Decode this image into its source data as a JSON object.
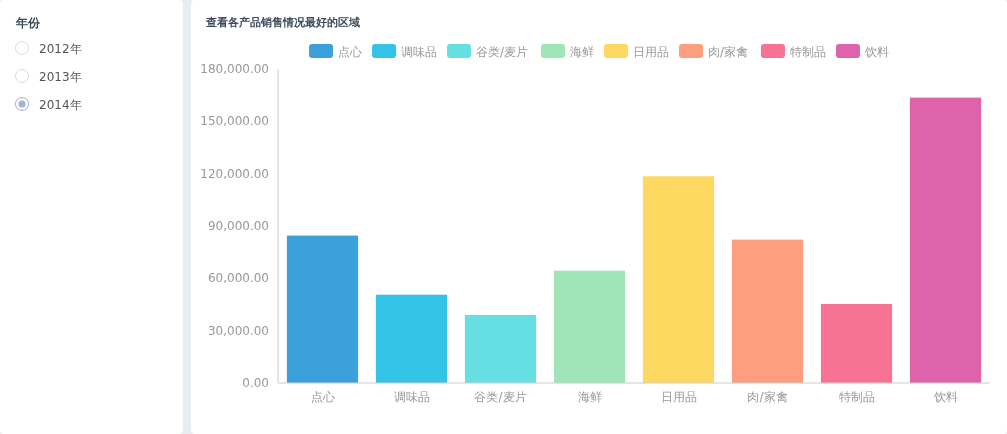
{
  "chart_data": [
    {
      "type": "other",
      "title": "年份",
      "annotations": [
        "2012年",
        "2013年",
        "2014年"
      ]
    },
    {
      "type": "bar",
      "title": "查看各产品销售情况最好的区域",
      "categories": [
        "点心",
        "调味品",
        "谷类/麦片",
        "海鲜",
        "日用品",
        "肉/家禽",
        "特制品",
        "饮料"
      ],
      "stacked": true,
      "series": [
        {
          "name": "点心",
          "color": "#3aa1da",
          "values": [
            84500,
            null,
            null,
            null,
            null,
            null,
            null,
            null
          ]
        },
        {
          "name": "调味品",
          "color": "#33c3e7",
          "values": [
            null,
            50600,
            null,
            null,
            null,
            null,
            null,
            null
          ]
        },
        {
          "name": "谷类/麦片",
          "color": "#66dfe2",
          "values": [
            null,
            null,
            39000,
            null,
            null,
            null,
            null,
            null
          ]
        },
        {
          "name": "海鲜",
          "color": "#a0e5b8",
          "values": [
            null,
            null,
            null,
            64400,
            null,
            null,
            null,
            null
          ]
        },
        {
          "name": "日用品",
          "color": "#fdd961",
          "values": [
            null,
            null,
            null,
            null,
            118500,
            null,
            null,
            null
          ]
        },
        {
          "name": "肉/家禽",
          "color": "#fe9e7f",
          "values": [
            null,
            null,
            null,
            null,
            null,
            82200,
            null,
            null
          ]
        },
        {
          "name": "特制品",
          "color": "#f87293",
          "values": [
            null,
            null,
            null,
            null,
            null,
            null,
            45300,
            null
          ]
        },
        {
          "name": "饮料",
          "color": "#df63aa",
          "values": [
            null,
            null,
            null,
            null,
            null,
            null,
            null,
            163600
          ]
        }
      ],
      "ylim": [
        0,
        180000
      ],
      "yticks": [
        {
          "value": 0,
          "label": "0.00"
        },
        {
          "value": 30000,
          "label": "30,000.00"
        },
        {
          "value": 60000,
          "label": "60,000.00"
        },
        {
          "value": 90000,
          "label": "90,000.00"
        },
        {
          "value": 120000,
          "label": "120,000.00"
        },
        {
          "value": 150000,
          "label": "150,000.00"
        },
        {
          "value": 180000,
          "label": "180,000.00"
        }
      ],
      "legend": "top"
    }
  ]
}
